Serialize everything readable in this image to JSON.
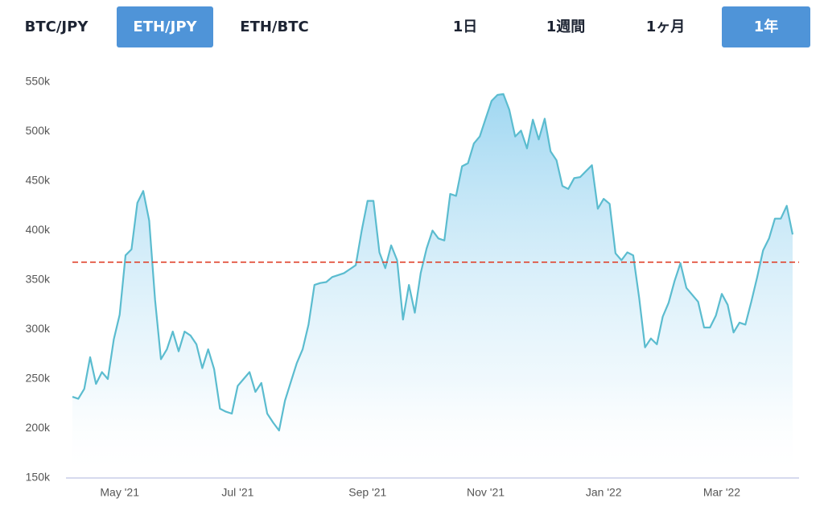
{
  "tabs": {
    "pairs": [
      "BTC/JPY",
      "ETH/JPY",
      "ETH/BTC"
    ],
    "active_pair": 1,
    "periods": [
      "1日",
      "1週間",
      "1ヶ月",
      "1年"
    ],
    "active_period": 3
  },
  "chart_data": {
    "type": "line",
    "categories": [
      null,
      null,
      null,
      null,
      null,
      null,
      null,
      null,
      "May '21",
      null,
      null,
      null,
      null,
      null,
      null,
      null,
      null,
      null,
      null,
      null,
      null,
      null,
      null,
      null,
      null,
      null,
      null,
      null,
      "Jul '21",
      null,
      null,
      null,
      null,
      null,
      null,
      null,
      null,
      null,
      null,
      null,
      null,
      null,
      null,
      null,
      null,
      null,
      null,
      null,
      null,
      null,
      "Sep '21",
      null,
      null,
      null,
      null,
      null,
      null,
      null,
      null,
      null,
      null,
      null,
      null,
      null,
      null,
      null,
      null,
      null,
      null,
      null,
      "Nov '21",
      null,
      null,
      null,
      null,
      null,
      null,
      null,
      null,
      null,
      null,
      null,
      null,
      null,
      null,
      null,
      null,
      null,
      null,
      null,
      "Jan '22",
      null,
      null,
      null,
      null,
      null,
      null,
      null,
      null,
      null,
      null,
      null,
      null,
      null,
      null,
      null,
      null,
      null,
      null,
      null,
      "Mar '22",
      null,
      null,
      null,
      null,
      null,
      null,
      null,
      null,
      null,
      null,
      null,
      null
    ],
    "series": [
      {
        "name": "ETH/JPY",
        "color": "#5bbccf",
        "values": [
          232000,
          230000,
          240000,
          272000,
          245000,
          257000,
          250000,
          290000,
          315000,
          375000,
          381000,
          428000,
          440000,
          410000,
          330000,
          270000,
          280000,
          298000,
          278000,
          298000,
          294000,
          285000,
          261000,
          280000,
          260000,
          220000,
          217000,
          215000,
          243000,
          250000,
          257000,
          237000,
          246000,
          215000,
          206000,
          198000,
          228000,
          247000,
          266000,
          280000,
          305000,
          345000,
          347000,
          348000,
          353000,
          355000,
          357000,
          361000,
          365000,
          400000,
          430000,
          430000,
          378000,
          362000,
          385000,
          370000,
          310000,
          345000,
          317000,
          357000,
          382000,
          400000,
          392000,
          390000,
          437000,
          435000,
          465000,
          468000,
          488000,
          495000,
          513000,
          531000,
          537000,
          538000,
          522000,
          495000,
          501000,
          483000,
          512000,
          492000,
          513000,
          480000,
          471000,
          445000,
          442000,
          453000,
          454000,
          460000,
          466000,
          422000,
          432000,
          427000,
          377000,
          370000,
          378000,
          375000,
          332000,
          282000,
          291000,
          285000,
          313000,
          327000,
          349000,
          367000,
          342000,
          335000,
          328000,
          302000,
          302000,
          314000,
          336000,
          325000,
          297000,
          307000,
          305000,
          328000,
          353000,
          380000,
          392000,
          412000,
          412000,
          425000,
          396000
        ]
      }
    ],
    "reference_line": {
      "value": 368000,
      "color": "#e0442f"
    },
    "ylim": [
      150000,
      550000
    ],
    "yticks": [
      {
        "value": 150000,
        "label": "150k"
      },
      {
        "value": 200000,
        "label": "200k"
      },
      {
        "value": 250000,
        "label": "250k"
      },
      {
        "value": 300000,
        "label": "300k"
      },
      {
        "value": 350000,
        "label": "350k"
      },
      {
        "value": 400000,
        "label": "400k"
      },
      {
        "value": 450000,
        "label": "450k"
      },
      {
        "value": 500000,
        "label": "500k"
      },
      {
        "value": 550000,
        "label": "550k"
      }
    ],
    "grid": false
  }
}
